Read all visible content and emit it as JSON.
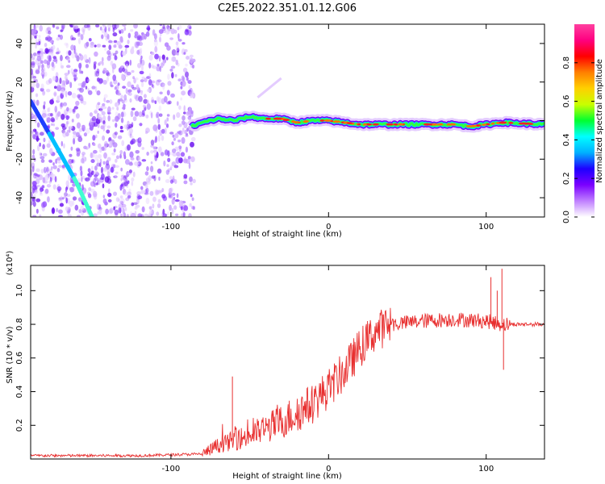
{
  "figure_title": "C2E5.2022.351.01.12.G06",
  "chart_data": [
    {
      "type": "heatmap",
      "xlabel": "Height of straight line (km)",
      "ylabel": "Frequency (Hz)",
      "xlim": [
        -189,
        137
      ],
      "ylim": [
        -50,
        50
      ],
      "x_ticks": [
        -100,
        0,
        100
      ],
      "y_ticks": [
        -40,
        -20,
        0,
        20,
        40
      ],
      "colorbar": {
        "label": "Normalized spectral amplitude",
        "range": [
          0,
          1
        ],
        "ticks": [
          0.0,
          0.2,
          0.4,
          0.6,
          0.8
        ],
        "colormap": [
          "#ffffff",
          "#c080ff",
          "#7a00ff",
          "#1e00ff",
          "#00b0ff",
          "#00ffff",
          "#00ff30",
          "#c8ff00",
          "#ffd000",
          "#ff8000",
          "#ff0000",
          "#ff0080",
          "#ff40a0"
        ]
      },
      "noise_region_x": [
        -189,
        -85
      ],
      "ridge": {
        "description_values": "frequency of main carrier line vs height",
        "x": [
          -87,
          -80,
          -70,
          -60,
          -50,
          -40,
          -30,
          -20,
          -10,
          0,
          20,
          40,
          60,
          80,
          90,
          100,
          110,
          137
        ],
        "y": [
          -3,
          -1,
          1,
          0,
          2,
          1,
          1,
          -1,
          0,
          0,
          -2,
          -2,
          -2,
          -2,
          -3,
          -2,
          -1,
          -2
        ]
      },
      "diagonal_line": {
        "x": [
          -189,
          -175,
          -160,
          -150
        ],
        "y": [
          10,
          -10,
          -32,
          -50
        ]
      }
    },
    {
      "type": "line",
      "xlabel": "Height of straight line (km)",
      "ylabel": "SNR (10 * v/v)",
      "y_scale_label": "(x10⁴)",
      "xlim": [
        -189,
        137
      ],
      "ylim": [
        0,
        1.15
      ],
      "x_ticks": [
        -100,
        0,
        100
      ],
      "y_ticks": [
        0.2,
        0.4,
        0.6,
        0.8,
        1.0
      ],
      "series_color": "#e83030",
      "trend": {
        "x": [
          -189,
          -120,
          -80,
          -70,
          -50,
          -30,
          -10,
          0,
          10,
          20,
          30,
          40,
          60,
          80,
          100,
          110,
          137
        ],
        "y": [
          0.02,
          0.02,
          0.03,
          0.08,
          0.14,
          0.22,
          0.33,
          0.42,
          0.52,
          0.66,
          0.76,
          0.8,
          0.82,
          0.83,
          0.82,
          0.8,
          0.8
        ]
      },
      "spikes": [
        {
          "x": -61,
          "y": 0.49
        },
        {
          "x": 103,
          "y": 1.08
        },
        {
          "x": 107,
          "y": 1.0
        },
        {
          "x": 110,
          "y": 1.13
        },
        {
          "x": 111,
          "y": 0.53
        }
      ]
    }
  ]
}
